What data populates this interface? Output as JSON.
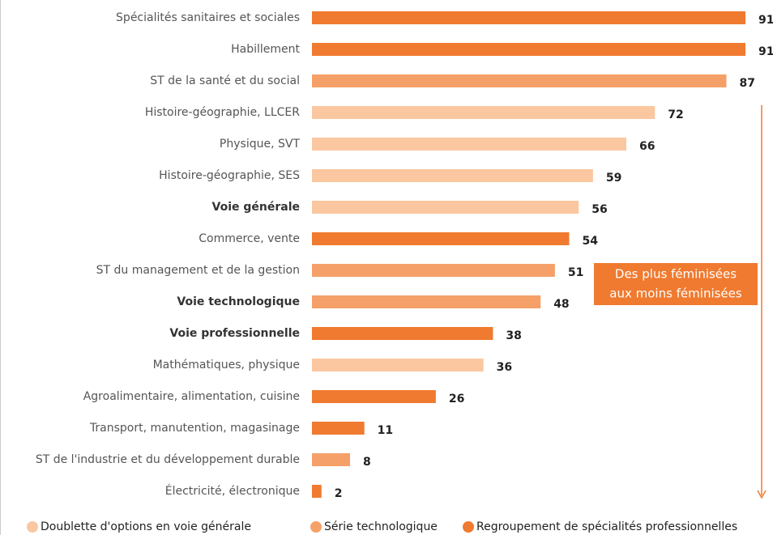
{
  "chart_data": {
    "type": "bar",
    "orientation": "horizontal",
    "categories": [
      "Spécialités sanitaires et sociales",
      "Habillement",
      "ST de la santé et du social",
      "Histoire-géographie, LLCER",
      "Physique, SVT",
      "Histoire-géographie, SES",
      "Voie générale",
      "Commerce, vente",
      "ST du management et de la gestion",
      "Voie technologique",
      "Voie professionnelle",
      "Mathématiques, physique",
      "Agroalimentaire, alimentation, cuisine",
      "Transport, manutention, magasinage",
      "ST de l'industrie et du développement durable",
      "Électricité, électronique"
    ],
    "values": [
      91,
      91,
      87,
      72,
      66,
      59,
      56,
      54,
      51,
      48,
      38,
      36,
      26,
      11,
      8,
      2
    ],
    "groups": [
      2,
      2,
      1,
      0,
      0,
      0,
      0,
      2,
      1,
      1,
      2,
      0,
      2,
      2,
      1,
      2
    ],
    "bold": [
      false,
      false,
      false,
      false,
      false,
      false,
      true,
      false,
      false,
      true,
      true,
      false,
      false,
      false,
      false,
      false
    ],
    "series": [
      {
        "name": "Doublette d'options en voie générale",
        "color": "#fbc7a0"
      },
      {
        "name": "Série technologique",
        "color": "#f5a068"
      },
      {
        "name": "Regroupement de spécialités professionnelles",
        "color": "#f07a2f"
      }
    ],
    "xlim": [
      0,
      91
    ],
    "annotation": [
      "Des plus féminisées",
      "aux moins féminisées"
    ]
  }
}
